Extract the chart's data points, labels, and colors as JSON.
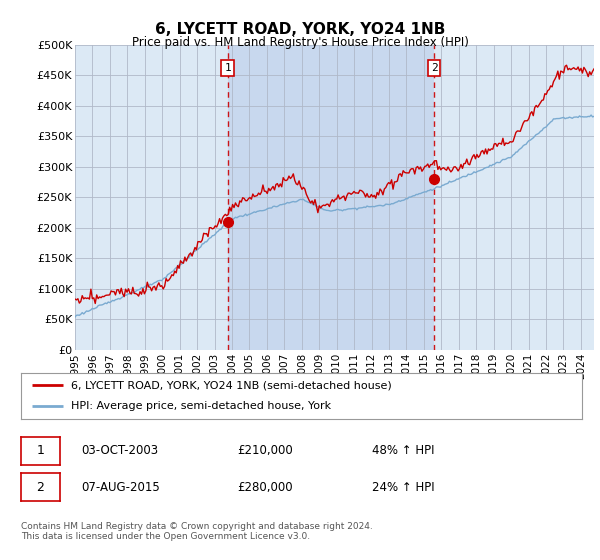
{
  "title": "6, LYCETT ROAD, YORK, YO24 1NB",
  "subtitle": "Price paid vs. HM Land Registry's House Price Index (HPI)",
  "plot_bg_color": "#dce9f5",
  "highlight_bg_color": "#c8d8ee",
  "ylim": [
    0,
    500000
  ],
  "yticks": [
    0,
    50000,
    100000,
    150000,
    200000,
    250000,
    300000,
    350000,
    400000,
    450000,
    500000
  ],
  "ytick_labels": [
    "£0",
    "£50K",
    "£100K",
    "£150K",
    "£200K",
    "£250K",
    "£300K",
    "£350K",
    "£400K",
    "£450K",
    "£500K"
  ],
  "sale1_date_x": 2003.75,
  "sale1_price": 210000,
  "sale1_label": "1",
  "sale1_date_str": "03-OCT-2003",
  "sale1_amount": "£210,000",
  "sale1_pct": "48% ↑ HPI",
  "sale2_date_x": 2015.58,
  "sale2_price": 280000,
  "sale2_label": "2",
  "sale2_date_str": "07-AUG-2015",
  "sale2_amount": "£280,000",
  "sale2_pct": "24% ↑ HPI",
  "legend_line1": "6, LYCETT ROAD, YORK, YO24 1NB (semi-detached house)",
  "legend_line2": "HPI: Average price, semi-detached house, York",
  "footer": "Contains HM Land Registry data © Crown copyright and database right 2024.\nThis data is licensed under the Open Government Licence v3.0.",
  "red_line_color": "#cc0000",
  "blue_line_color": "#7aaad0",
  "xmin": 1995.0,
  "xmax": 2024.75
}
